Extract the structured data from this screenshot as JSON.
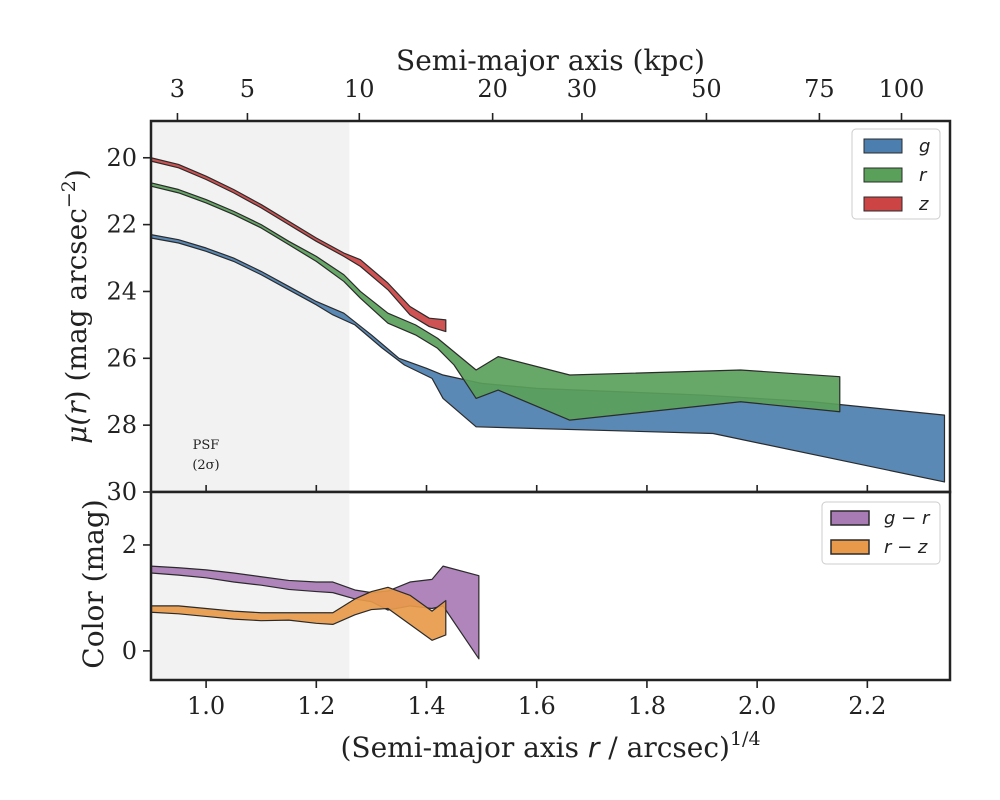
{
  "chart_data": [
    {
      "type": "area",
      "panel": "surface-brightness",
      "ylabel": "μ(r) (mag arcsec⁻²)",
      "top_xlabel": "Semi-major axis (kpc)",
      "top_ticks": [
        {
          "label": "3",
          "x": 0.948
        },
        {
          "label": "5",
          "x": 1.075
        },
        {
          "label": "10",
          "x": 1.278
        },
        {
          "label": "20",
          "x": 1.52
        },
        {
          "label": "30",
          "x": 1.682
        },
        {
          "label": "50",
          "x": 1.908
        },
        {
          "label": "75",
          "x": 2.113
        },
        {
          "label": "100",
          "x": 2.262
        }
      ],
      "xlim": [
        0.9,
        2.35
      ],
      "ylim": [
        30.0,
        18.9
      ],
      "yticks": [
        20,
        22,
        24,
        26,
        28,
        30
      ],
      "inverted_y": true,
      "psf_shade_x": [
        0.9,
        1.26
      ],
      "psf_label": [
        "PSF",
        "(2σ)"
      ],
      "legend_position": "top-right",
      "series": [
        {
          "name": "g",
          "color": "#4c7fb0",
          "upper": [
            [
              0.9,
              22.3
            ],
            [
              0.95,
              22.45
            ],
            [
              1.0,
              22.7
            ],
            [
              1.05,
              23.0
            ],
            [
              1.1,
              23.4
            ],
            [
              1.15,
              23.85
            ],
            [
              1.2,
              24.3
            ],
            [
              1.25,
              24.65
            ],
            [
              1.3,
              25.3
            ],
            [
              1.35,
              26.0
            ],
            [
              1.4,
              26.3
            ],
            [
              1.43,
              26.5
            ],
            [
              1.5,
              26.75
            ],
            [
              1.6,
              26.9
            ],
            [
              1.75,
              27.0
            ],
            [
              1.9,
              27.1
            ],
            [
              2.1,
              27.3
            ],
            [
              2.34,
              27.7
            ]
          ],
          "lower": [
            [
              0.9,
              22.4
            ],
            [
              0.95,
              22.55
            ],
            [
              1.0,
              22.8
            ],
            [
              1.05,
              23.1
            ],
            [
              1.1,
              23.5
            ],
            [
              1.15,
              23.95
            ],
            [
              1.2,
              24.4
            ],
            [
              1.23,
              24.7
            ],
            [
              1.27,
              25.0
            ],
            [
              1.32,
              25.7
            ],
            [
              1.36,
              26.2
            ],
            [
              1.41,
              26.6
            ],
            [
              1.43,
              27.2
            ],
            [
              1.49,
              28.05
            ],
            [
              1.92,
              28.25
            ],
            [
              2.34,
              29.7
            ]
          ]
        },
        {
          "name": "r",
          "color": "#5aa05a",
          "upper": [
            [
              0.9,
              20.75
            ],
            [
              0.95,
              20.95
            ],
            [
              1.0,
              21.25
            ],
            [
              1.05,
              21.6
            ],
            [
              1.1,
              22.0
            ],
            [
              1.15,
              22.5
            ],
            [
              1.2,
              22.95
            ],
            [
              1.25,
              23.5
            ],
            [
              1.28,
              24.0
            ],
            [
              1.33,
              24.65
            ],
            [
              1.38,
              25.0
            ],
            [
              1.42,
              25.4
            ],
            [
              1.49,
              26.35
            ],
            [
              1.53,
              25.95
            ],
            [
              1.66,
              26.5
            ],
            [
              1.97,
              26.35
            ],
            [
              2.15,
              26.55
            ]
          ],
          "lower": [
            [
              0.9,
              20.85
            ],
            [
              0.95,
              21.05
            ],
            [
              1.0,
              21.35
            ],
            [
              1.05,
              21.7
            ],
            [
              1.1,
              22.1
            ],
            [
              1.15,
              22.6
            ],
            [
              1.2,
              23.1
            ],
            [
              1.25,
              23.7
            ],
            [
              1.28,
              24.2
            ],
            [
              1.33,
              24.95
            ],
            [
              1.38,
              25.3
            ],
            [
              1.42,
              25.7
            ],
            [
              1.45,
              26.2
            ],
            [
              1.49,
              27.2
            ],
            [
              1.53,
              26.95
            ],
            [
              1.66,
              27.85
            ],
            [
              1.97,
              27.3
            ],
            [
              2.15,
              27.6
            ]
          ]
        },
        {
          "name": "z",
          "color": "#cc4444",
          "upper": [
            [
              0.9,
              20.0
            ],
            [
              0.95,
              20.2
            ],
            [
              1.0,
              20.55
            ],
            [
              1.05,
              20.95
            ],
            [
              1.1,
              21.4
            ],
            [
              1.15,
              21.9
            ],
            [
              1.2,
              22.4
            ],
            [
              1.25,
              22.85
            ],
            [
              1.28,
              23.05
            ],
            [
              1.33,
              23.75
            ],
            [
              1.37,
              24.45
            ],
            [
              1.405,
              24.8
            ],
            [
              1.435,
              24.85
            ]
          ],
          "lower": [
            [
              0.9,
              20.1
            ],
            [
              0.95,
              20.3
            ],
            [
              1.0,
              20.65
            ],
            [
              1.05,
              21.05
            ],
            [
              1.1,
              21.5
            ],
            [
              1.15,
              22.0
            ],
            [
              1.2,
              22.5
            ],
            [
              1.25,
              22.95
            ],
            [
              1.28,
              23.25
            ],
            [
              1.33,
              23.95
            ],
            [
              1.37,
              24.7
            ],
            [
              1.405,
              25.05
            ],
            [
              1.435,
              25.2
            ]
          ]
        }
      ]
    },
    {
      "type": "area",
      "panel": "color",
      "xlabel": "(Semi-major axis r / arcsec)^1/4",
      "xlabel_main": "(Semi-major axis ",
      "xlabel_var": "r",
      "xlabel_rest": " / arcsec)",
      "xlabel_exp": "1/4",
      "ylabel": "Color (mag)",
      "xlim": [
        0.9,
        2.35
      ],
      "ylim": [
        -0.55,
        3.0
      ],
      "yticks": [
        0,
        2
      ],
      "xticks": [
        1.0,
        1.2,
        1.4,
        1.6,
        1.8,
        2.0,
        2.2
      ],
      "xtick_labels": [
        "1.0",
        "1.2",
        "1.4",
        "1.6",
        "1.8",
        "2.0",
        "2.2"
      ],
      "legend_position": "top-right",
      "series": [
        {
          "name": "g − r",
          "color": "#a87bb5",
          "upper": [
            [
              0.9,
              1.6
            ],
            [
              0.95,
              1.57
            ],
            [
              1.0,
              1.53
            ],
            [
              1.05,
              1.47
            ],
            [
              1.1,
              1.4
            ],
            [
              1.15,
              1.33
            ],
            [
              1.2,
              1.3
            ],
            [
              1.23,
              1.3
            ],
            [
              1.27,
              1.15
            ],
            [
              1.3,
              1.1
            ],
            [
              1.33,
              1.13
            ],
            [
              1.37,
              1.3
            ],
            [
              1.41,
              1.35
            ],
            [
              1.43,
              1.6
            ],
            [
              1.495,
              1.42
            ]
          ],
          "lower": [
            [
              0.9,
              1.47
            ],
            [
              0.95,
              1.43
            ],
            [
              1.0,
              1.38
            ],
            [
              1.05,
              1.3
            ],
            [
              1.1,
              1.24
            ],
            [
              1.15,
              1.16
            ],
            [
              1.2,
              1.12
            ],
            [
              1.23,
              1.1
            ],
            [
              1.27,
              0.98
            ],
            [
              1.3,
              0.93
            ],
            [
              1.33,
              0.77
            ],
            [
              1.37,
              0.85
            ],
            [
              1.41,
              0.8
            ],
            [
              1.43,
              0.85
            ],
            [
              1.495,
              -0.15
            ]
          ]
        },
        {
          "name": "r − z",
          "color": "#e89a4a",
          "upper": [
            [
              0.9,
              0.85
            ],
            [
              0.95,
              0.85
            ],
            [
              1.0,
              0.8
            ],
            [
              1.05,
              0.75
            ],
            [
              1.1,
              0.72
            ],
            [
              1.15,
              0.72
            ],
            [
              1.2,
              0.72
            ],
            [
              1.23,
              0.72
            ],
            [
              1.27,
              0.98
            ],
            [
              1.3,
              1.12
            ],
            [
              1.33,
              1.2
            ],
            [
              1.37,
              1.05
            ],
            [
              1.41,
              0.75
            ],
            [
              1.435,
              0.95
            ]
          ],
          "lower": [
            [
              0.9,
              0.73
            ],
            [
              0.95,
              0.7
            ],
            [
              1.0,
              0.65
            ],
            [
              1.05,
              0.6
            ],
            [
              1.1,
              0.57
            ],
            [
              1.15,
              0.58
            ],
            [
              1.2,
              0.52
            ],
            [
              1.23,
              0.5
            ],
            [
              1.27,
              0.68
            ],
            [
              1.3,
              0.78
            ],
            [
              1.33,
              0.8
            ],
            [
              1.37,
              0.5
            ],
            [
              1.41,
              0.2
            ],
            [
              1.435,
              0.3
            ]
          ]
        }
      ]
    }
  ]
}
